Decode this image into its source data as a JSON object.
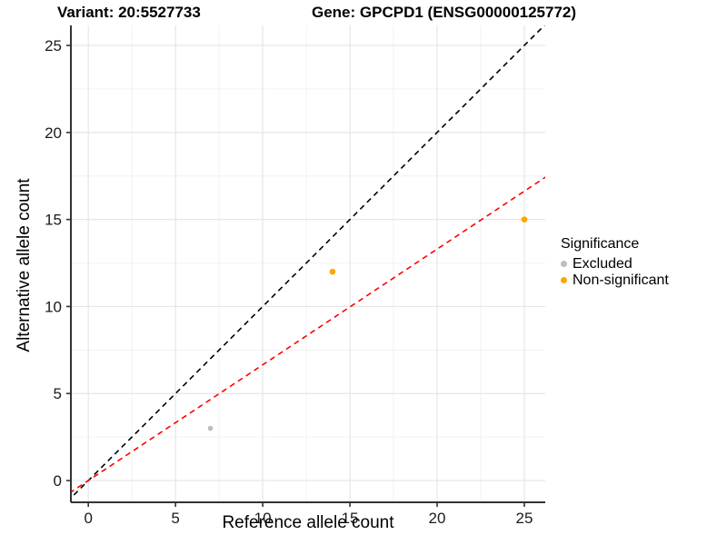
{
  "chart_data": {
    "type": "scatter",
    "title_left": "Variant: 20:5527733",
    "title_right": "Gene: GPCPD1 (ENSG00000125772)",
    "xlabel": "Reference allele count",
    "ylabel": "Alternative allele count",
    "xlim": [
      -1.0,
      26.2
    ],
    "ylim": [
      -1.25,
      26.15
    ],
    "major_ticks": [
      0,
      5,
      10,
      15,
      20,
      25
    ],
    "minor_ticks": [
      2.5,
      7.5,
      12.5,
      17.5,
      22.5
    ],
    "grid": true,
    "points": [
      {
        "x": 7,
        "y": 3,
        "group": "Excluded",
        "r": 2.8
      },
      {
        "x": 14,
        "y": 12,
        "group": "Non-significant",
        "r": 3.3
      },
      {
        "x": 25,
        "y": 15,
        "group": "Non-significant",
        "r": 3.3
      }
    ],
    "group_colors": {
      "Excluded": "#bdbdbd",
      "Non-significant": "#ffa500"
    },
    "lines": [
      {
        "name": "identity-line",
        "slope": 1.0,
        "intercept": 0,
        "color": "#000000",
        "dash": "6,4.6"
      },
      {
        "name": "regression-line",
        "slope": 0.665,
        "intercept": 0,
        "color": "#ff0000",
        "dash": "6,4.6"
      }
    ],
    "legend": {
      "title": "Significance",
      "position": "right",
      "items": [
        {
          "label": "Excluded",
          "color": "#bdbdbd"
        },
        {
          "label": "Non-significant",
          "color": "#ffa500"
        }
      ]
    },
    "colors": {
      "grid_major": "#e6e6e6",
      "grid_minor": "#f2f2f2",
      "axis_line": "#333333",
      "tick_label": "#1a1a1a"
    }
  }
}
